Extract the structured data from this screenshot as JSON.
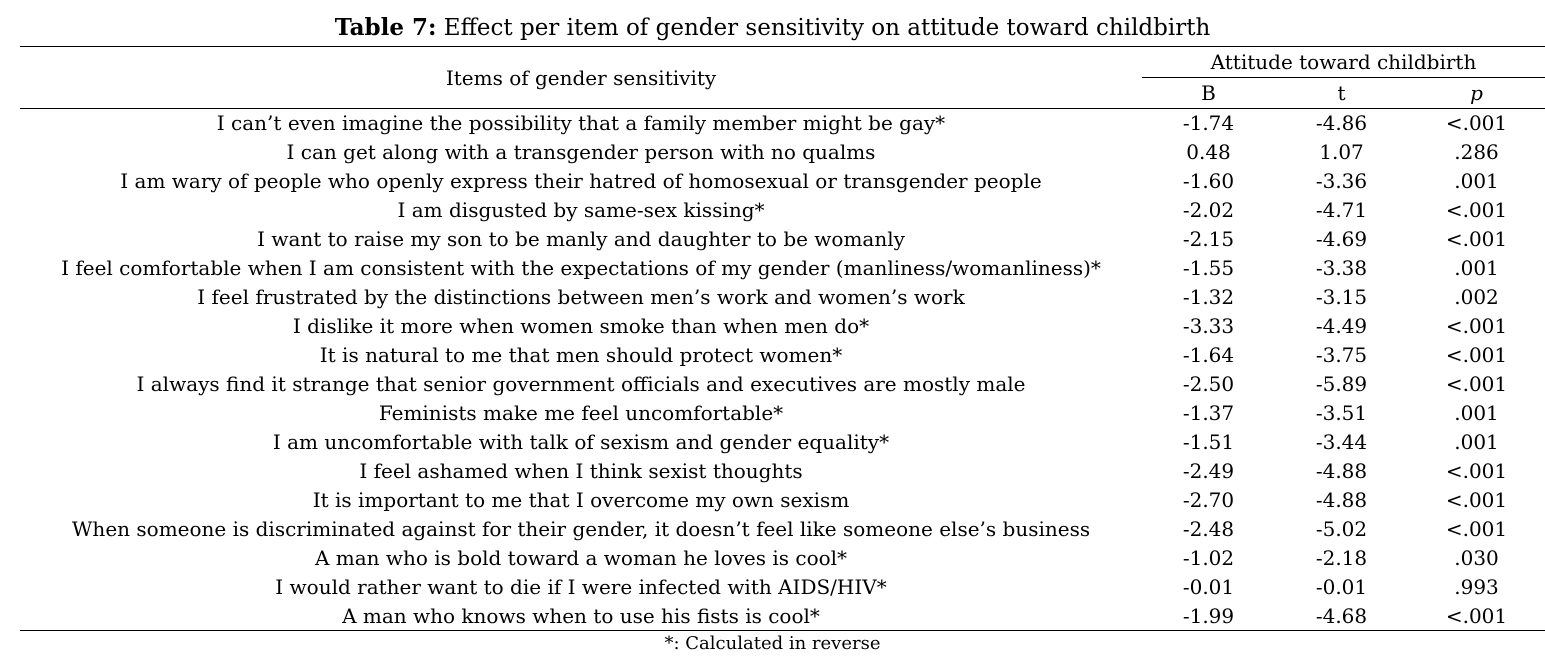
{
  "caption": {
    "label": "Table 7:",
    "title": "Effect per item of gender sensitivity on attitude toward childbirth"
  },
  "header": {
    "items_column": "Items of gender sensitivity",
    "group": "Attitude toward childbirth",
    "col_b": "B",
    "col_t": "t",
    "col_p": "p"
  },
  "rows": [
    {
      "item": "I can’t even imagine the possibility that a family member might be gay*",
      "b": "-1.74",
      "t": "-4.86",
      "p": "<.001"
    },
    {
      "item": "I can get along with a transgender person with no qualms",
      "b": "0.48",
      "t": "1.07",
      "p": ".286"
    },
    {
      "item": "I am wary of people who openly express their hatred of homosexual or transgender people",
      "b": "-1.60",
      "t": "-3.36",
      "p": ".001"
    },
    {
      "item": "I am disgusted by same-sex kissing*",
      "b": "-2.02",
      "t": "-4.71",
      "p": "<.001"
    },
    {
      "item": "I want to raise my son to be manly and daughter to be womanly",
      "b": "-2.15",
      "t": "-4.69",
      "p": "<.001"
    },
    {
      "item": "I feel comfortable when I am consistent with the expectations of my gender (manliness/womanliness)*",
      "b": "-1.55",
      "t": "-3.38",
      "p": ".001"
    },
    {
      "item": "I feel frustrated by the distinctions between men’s work and women’s work",
      "b": "-1.32",
      "t": "-3.15",
      "p": ".002"
    },
    {
      "item": "I dislike it more when women smoke than when men do*",
      "b": "-3.33",
      "t": "-4.49",
      "p": "<.001"
    },
    {
      "item": "It is natural to me that men should protect women*",
      "b": "-1.64",
      "t": "-3.75",
      "p": "<.001"
    },
    {
      "item": "I always find it strange that senior government officials and executives are mostly male",
      "b": "-2.50",
      "t": "-5.89",
      "p": "<.001"
    },
    {
      "item": "Feminists make me feel uncomfortable*",
      "b": "-1.37",
      "t": "-3.51",
      "p": ".001"
    },
    {
      "item": "I am uncomfortable with talk of sexism and gender equality*",
      "b": "-1.51",
      "t": "-3.44",
      "p": ".001"
    },
    {
      "item": "I feel ashamed when I think sexist thoughts",
      "b": "-2.49",
      "t": "-4.88",
      "p": "<.001"
    },
    {
      "item": "It is important to me that I overcome my own sexism",
      "b": "-2.70",
      "t": "-4.88",
      "p": "<.001"
    },
    {
      "item": "When someone is discriminated against for their gender, it doesn’t feel like someone else’s business",
      "b": "-2.48",
      "t": "-5.02",
      "p": "<.001"
    },
    {
      "item": "A man who is bold toward a woman he loves is cool*",
      "b": "-1.02",
      "t": "-2.18",
      "p": ".030"
    },
    {
      "item": "I would rather want to die if I were infected with AIDS/HIV*",
      "b": "-0.01",
      "t": "-0.01",
      "p": ".993"
    },
    {
      "item": "A man who knows when to use his fists is cool*",
      "b": "-1.99",
      "t": "-4.68",
      "p": "<.001"
    }
  ],
  "footnote": "*: Calculated in reverse"
}
